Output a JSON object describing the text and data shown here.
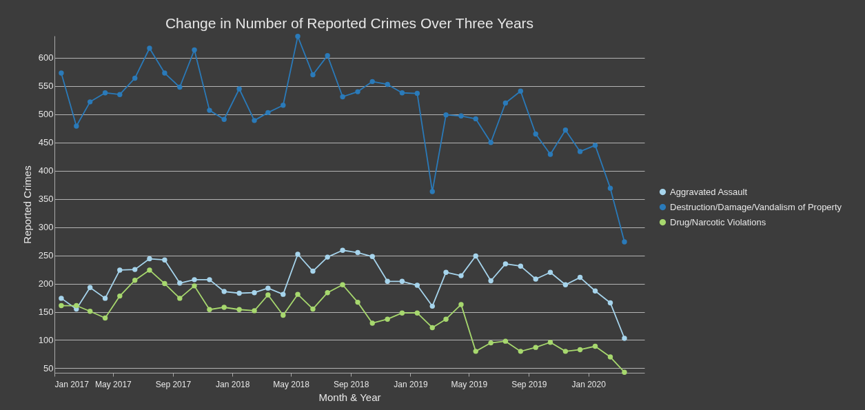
{
  "chart_data": {
    "type": "line",
    "title": "Change in Number of Reported Crimes Over Three Years",
    "xlabel": "Month & Year",
    "ylabel": "Reported Crimes",
    "x": [
      "2017-01-15",
      "2017-02-15",
      "2017-03-15",
      "2017-04-15",
      "2017-05-15",
      "2017-06-15",
      "2017-07-15",
      "2017-08-15",
      "2017-09-15",
      "2017-10-15",
      "2017-11-15",
      "2017-12-15",
      "2018-01-15",
      "2018-02-15",
      "2018-03-15",
      "2018-04-15",
      "2018-05-15",
      "2018-06-15",
      "2018-07-15",
      "2018-08-15",
      "2018-09-15",
      "2018-10-15",
      "2018-11-15",
      "2018-12-15",
      "2019-01-15",
      "2019-02-15",
      "2019-03-15",
      "2019-04-15",
      "2019-05-15",
      "2019-06-15",
      "2019-07-15",
      "2019-08-15",
      "2019-09-15",
      "2019-10-15",
      "2019-11-15",
      "2019-12-15",
      "2020-01-15",
      "2020-02-15",
      "2020-03-15"
    ],
    "series": [
      {
        "name": "Aggravated Assault",
        "color": "#a6d4ec",
        "values": [
          174,
          155,
          193,
          174,
          224,
          225,
          244,
          242,
          201,
          207,
          207,
          186,
          183,
          184,
          192,
          181,
          252,
          222,
          247,
          259,
          255,
          248,
          204,
          204,
          197,
          160,
          220,
          214,
          249,
          205,
          235,
          231,
          208,
          220,
          198,
          211,
          187,
          166,
          103
        ]
      },
      {
        "name": "Destruction/Damage/Vandalism of Property",
        "color": "#2a7ab9",
        "values": [
          573,
          479,
          522,
          538,
          535,
          564,
          617,
          573,
          548,
          614,
          507,
          491,
          545,
          489,
          503,
          516,
          638,
          570,
          604,
          531,
          540,
          558,
          553,
          538,
          537,
          363,
          499,
          497,
          492,
          450,
          520,
          541,
          465,
          429,
          472,
          434,
          445,
          369,
          274
        ]
      },
      {
        "name": "Drug/Narcotic Violations",
        "color": "#a7d86e",
        "values": [
          161,
          161,
          151,
          139,
          178,
          206,
          224,
          200,
          174,
          196,
          154,
          158,
          154,
          152,
          180,
          144,
          181,
          155,
          184,
          198,
          167,
          130,
          137,
          148,
          148,
          122,
          137,
          163,
          80,
          95,
          98,
          80,
          87,
          96,
          80,
          83,
          89,
          70,
          43
        ]
      }
    ],
    "xlim": [
      "2017-01-01",
      "2020-04-25"
    ],
    "xticks": [
      {
        "value": "2017-01",
        "label": "Jan 2017"
      },
      {
        "value": "2017-05",
        "label": "May 2017"
      },
      {
        "value": "2017-09",
        "label": "Sep 2017"
      },
      {
        "value": "2018-01",
        "label": "Jan 2018"
      },
      {
        "value": "2018-05",
        "label": "May 2018"
      },
      {
        "value": "2018-09",
        "label": "Sep 2018"
      },
      {
        "value": "2019-01",
        "label": "Jan 2019"
      },
      {
        "value": "2019-05",
        "label": "May 2019"
      },
      {
        "value": "2019-09",
        "label": "Sep 2019"
      },
      {
        "value": "2020-01",
        "label": "Jan 2020"
      }
    ],
    "ylim": [
      42,
      639
    ],
    "yticks": [
      50,
      100,
      150,
      200,
      250,
      300,
      350,
      400,
      450,
      500,
      550,
      600
    ],
    "grid": "y",
    "legend": "right",
    "marker": "circle",
    "line_style": "solid"
  }
}
